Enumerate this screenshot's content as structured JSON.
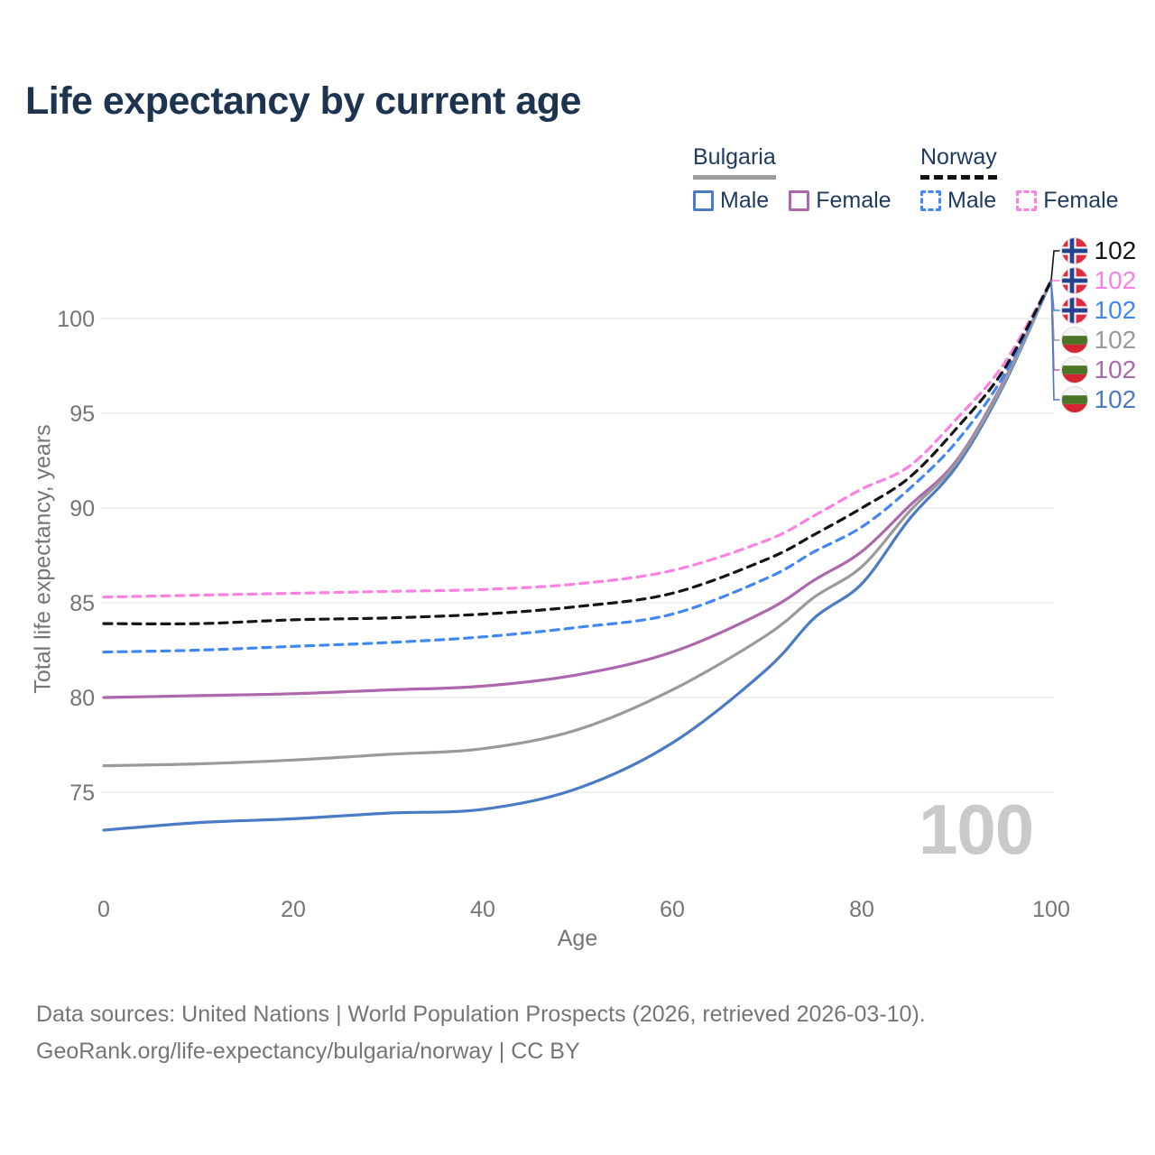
{
  "header": {
    "title": "Life expectancy by current age"
  },
  "legend": {
    "groups": [
      {
        "label": "Bulgaria",
        "line_style": "solid",
        "underline_color": "#9c9c9c",
        "items": [
          {
            "label": "Male",
            "color": "#4a7bc4",
            "dashed": false
          },
          {
            "label": "Female",
            "color": "#ad67ad",
            "dashed": false
          }
        ]
      },
      {
        "label": "Norway",
        "line_style": "dashed",
        "underline_color": "#111111",
        "items": [
          {
            "label": "Male",
            "color": "#4187f4",
            "dashed": true
          },
          {
            "label": "Female",
            "color": "#fb80e3",
            "dashed": true
          }
        ]
      }
    ]
  },
  "chart_data": {
    "type": "line",
    "title": "Life expectancy by current age",
    "xlabel": "Age",
    "ylabel": "Total life expectancy, years",
    "xlim": [
      0,
      100
    ],
    "ylim": [
      71,
      104
    ],
    "x_ticks": [
      0,
      20,
      40,
      60,
      80,
      100
    ],
    "y_ticks": [
      75,
      80,
      85,
      90,
      95,
      100
    ],
    "grid": "horizontal-only",
    "gridline_color": "#ececec",
    "tick_label_color": "#757575",
    "ages": [
      0,
      10,
      20,
      30,
      40,
      50,
      60,
      70,
      75,
      80,
      85,
      90,
      95,
      100
    ],
    "series": [
      {
        "name": "Norway",
        "country": "Norway",
        "sex": "Both",
        "color": "#141414",
        "dashed": true,
        "flag": "norway",
        "end_value": 102,
        "values": [
          83.9,
          83.9,
          84.1,
          84.2,
          84.4,
          84.8,
          85.5,
          87.3,
          88.6,
          90.0,
          91.6,
          94.2,
          97.3,
          102
        ]
      },
      {
        "name": "Norway Female",
        "country": "Norway",
        "sex": "Female",
        "color": "#fb80e3",
        "dashed": true,
        "flag": "norway",
        "end_value": 102,
        "values": [
          85.3,
          85.4,
          85.5,
          85.6,
          85.7,
          86.0,
          86.7,
          88.3,
          89.6,
          91.0,
          92.2,
          94.7,
          97.6,
          102
        ]
      },
      {
        "name": "Norway Male",
        "country": "Norway",
        "sex": "Male",
        "color": "#4187f4",
        "dashed": true,
        "flag": "norway",
        "end_value": 102,
        "values": [
          82.4,
          82.5,
          82.7,
          82.9,
          83.2,
          83.7,
          84.4,
          86.3,
          87.7,
          89.0,
          91.0,
          93.5,
          97.0,
          102
        ]
      },
      {
        "name": "Bulgaria",
        "country": "Bulgaria",
        "sex": "Both",
        "color": "#9a9a9a",
        "dashed": false,
        "flag": "bulgaria",
        "end_value": 102,
        "values": [
          76.4,
          76.5,
          76.7,
          77.0,
          77.3,
          78.3,
          80.4,
          83.3,
          85.3,
          86.9,
          89.8,
          92.4,
          96.6,
          102
        ]
      },
      {
        "name": "Bulgaria Female",
        "country": "Bulgaria",
        "sex": "Female",
        "color": "#ad67ad",
        "dashed": false,
        "flag": "bulgaria",
        "end_value": 102,
        "values": [
          80.0,
          80.1,
          80.2,
          80.4,
          80.6,
          81.2,
          82.4,
          84.6,
          86.2,
          87.7,
          90.1,
          92.5,
          96.7,
          102
        ]
      },
      {
        "name": "Bulgaria Male",
        "country": "Bulgaria",
        "sex": "Male",
        "color": "#4a7bc4",
        "dashed": false,
        "flag": "bulgaria",
        "end_value": 102,
        "values": [
          73.0,
          73.4,
          73.6,
          73.9,
          74.1,
          75.2,
          77.6,
          81.5,
          84.2,
          86.0,
          89.4,
          92.2,
          96.5,
          102
        ]
      }
    ],
    "flag_colors": {
      "norway": {
        "background": "#e02a3f",
        "cross_outer": "#ffffff",
        "cross_inner": "#26418f"
      },
      "bulgaria": {
        "top": "#f4f4f4",
        "middle": "#4c7427",
        "bottom": "#d62532"
      }
    }
  },
  "watermark": "100",
  "footer": {
    "line1": "Data sources: United Nations | World Population Prospects (2026, retrieved 2026-03-10).",
    "line2": "GeoRank.org/life-expectancy/bulgaria/norway | CC BY"
  }
}
